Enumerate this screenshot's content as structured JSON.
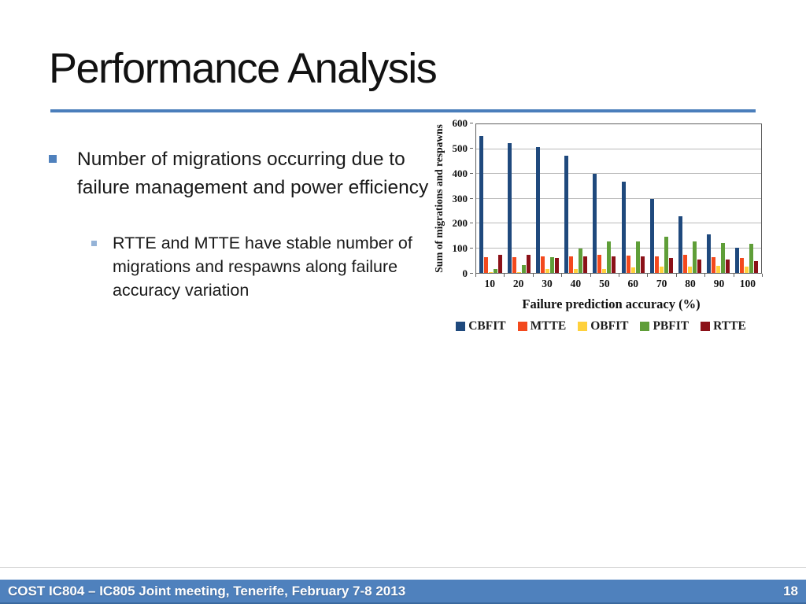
{
  "slide": {
    "title": "Performance Analysis",
    "footer": "COST IC804 – IC805 Joint meeting, Tenerife, February 7-8 2013",
    "page_number": "18"
  },
  "bullets": {
    "main": "Number of migrations occurring due to failure management and power efficiency",
    "sub": "RTTE and MTTE have stable number of migrations and respawns along failure accuracy variation"
  },
  "colors": {
    "accent_blue": "#4F81BD",
    "title_underline": "#4A7EBB",
    "footer_bar": "#4F81BD",
    "sub_bullet": "#95B3D7"
  },
  "chart_data": {
    "type": "bar",
    "title": "",
    "xlabel": "Failure prediction accuracy (%)",
    "ylabel": "Sum of migrations and respawns",
    "categories": [
      10,
      20,
      30,
      40,
      50,
      60,
      70,
      80,
      90,
      100
    ],
    "ylim": [
      0,
      600
    ],
    "y_ticks": [
      0,
      100,
      200,
      300,
      400,
      500,
      600
    ],
    "grid": true,
    "legend_position": "bottom",
    "series": [
      {
        "name": "CBFIT",
        "color": "#1F497D",
        "values": [
          552,
          525,
          508,
          473,
          401,
          368,
          298,
          228,
          157,
          102
        ]
      },
      {
        "name": "MTTE",
        "color": "#F3491D",
        "values": [
          64,
          65,
          68,
          68,
          72,
          70,
          68,
          72,
          64,
          61
        ]
      },
      {
        "name": "OBFIT",
        "color": "#FFD13C",
        "values": [
          2,
          4,
          17,
          16,
          15,
          22,
          27,
          27,
          30,
          26
        ]
      },
      {
        "name": "PBFIT",
        "color": "#5F9E38",
        "values": [
          15,
          33,
          65,
          98,
          128,
          126,
          146,
          126,
          122,
          118
        ]
      },
      {
        "name": "RTTE",
        "color": "#8B1118",
        "values": [
          72,
          74,
          61,
          66,
          66,
          68,
          60,
          55,
          53,
          49
        ]
      }
    ]
  }
}
